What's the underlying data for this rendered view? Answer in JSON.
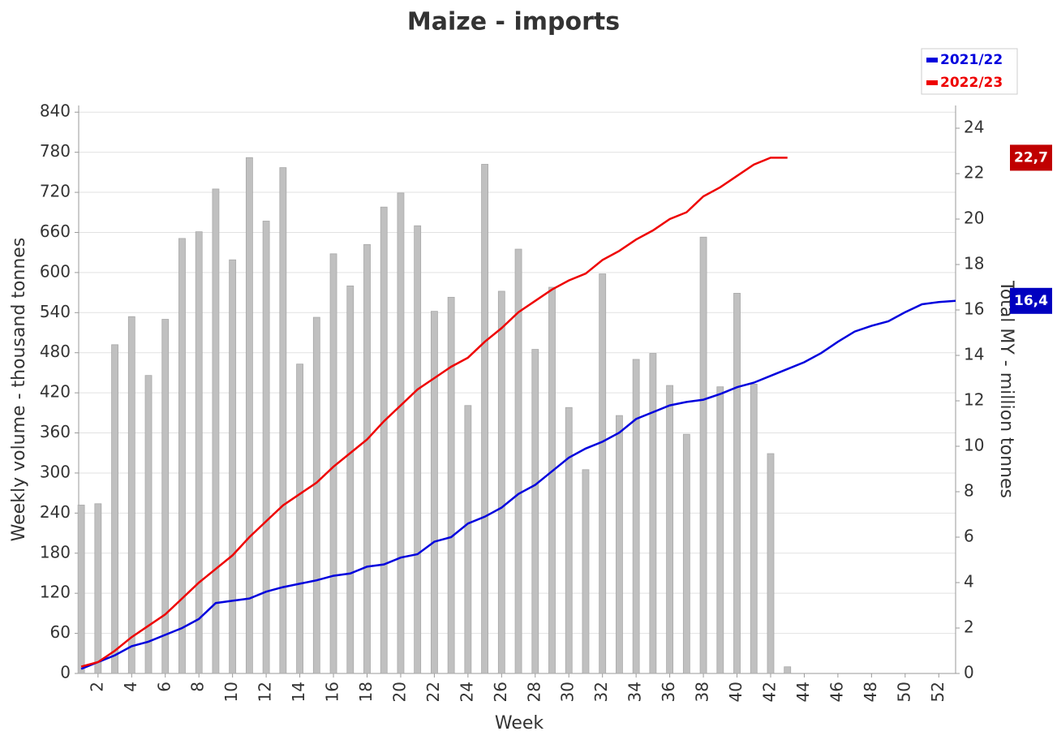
{
  "chart_data": {
    "type": "bar_line",
    "title": "Maize - imports",
    "xlabel": "Week",
    "ylabel": "Weekly volume - thousand tonnes",
    "y2label": "Total MY - million tonnes",
    "xlim": [
      0.85,
      53
    ],
    "xticks": [
      2,
      4,
      6,
      8,
      10,
      12,
      14,
      16,
      18,
      20,
      22,
      24,
      26,
      28,
      30,
      32,
      34,
      36,
      38,
      40,
      42,
      44,
      46,
      48,
      50,
      52
    ],
    "ylim": [
      0,
      850
    ],
    "yticks": [
      0,
      60,
      120,
      180,
      240,
      300,
      360,
      420,
      480,
      540,
      600,
      660,
      720,
      780,
      840
    ],
    "y2lim": [
      0,
      25
    ],
    "y2ticks": [
      0,
      2,
      4,
      6,
      8,
      10,
      12,
      14,
      16,
      18,
      20,
      22,
      24
    ],
    "grid": true,
    "legend": "top-right",
    "bars": {
      "color": "#c0c0c0",
      "x": [
        1,
        2,
        3,
        4,
        5,
        6,
        7,
        8,
        9,
        10,
        11,
        12,
        13,
        14,
        15,
        16,
        17,
        18,
        19,
        20,
        21,
        22,
        23,
        24,
        25,
        26,
        27,
        28,
        29,
        30,
        31,
        32,
        33,
        34,
        35,
        36,
        37,
        38,
        39,
        40,
        41,
        42,
        43,
        44,
        45,
        46,
        47,
        48,
        49,
        50,
        51,
        52
      ],
      "values": [
        252,
        254,
        492,
        534,
        446,
        530,
        651,
        661,
        725,
        619,
        772,
        677,
        757,
        463,
        533,
        628,
        580,
        642,
        698,
        719,
        670,
        542,
        563,
        401,
        762,
        572,
        635,
        485,
        578,
        398,
        305,
        598,
        386,
        470,
        479,
        431,
        358,
        653,
        429,
        569,
        433,
        329,
        10,
        0,
        0,
        0,
        0,
        0,
        0,
        0,
        0,
        0
      ]
    },
    "series": [
      {
        "name": "2021/22",
        "color": "#0000dd",
        "axis": "y2",
        "end_label": "16,4",
        "x": [
          1,
          2,
          3,
          4,
          5,
          6,
          7,
          8,
          9,
          10,
          11,
          12,
          13,
          14,
          15,
          16,
          17,
          18,
          19,
          20,
          21,
          22,
          23,
          24,
          25,
          26,
          27,
          28,
          29,
          30,
          31,
          32,
          33,
          34,
          35,
          36,
          37,
          38,
          39,
          40,
          41,
          42,
          43,
          44,
          45,
          46,
          47,
          48,
          49,
          50,
          51,
          52,
          53
        ],
        "values": [
          0.2,
          0.5,
          0.8,
          1.2,
          1.4,
          1.7,
          2.0,
          2.4,
          3.1,
          3.2,
          3.3,
          3.6,
          3.8,
          3.95,
          4.1,
          4.3,
          4.4,
          4.7,
          4.8,
          5.1,
          5.25,
          5.8,
          6.0,
          6.6,
          6.9,
          7.3,
          7.9,
          8.3,
          8.9,
          9.5,
          9.9,
          10.2,
          10.6,
          11.2,
          11.5,
          11.8,
          11.95,
          12.05,
          12.3,
          12.6,
          12.8,
          13.1,
          13.4,
          13.7,
          14.1,
          14.6,
          15.05,
          15.3,
          15.5,
          15.9,
          16.25,
          16.35,
          16.4
        ]
      },
      {
        "name": "2022/23",
        "color": "#ee0000",
        "axis": "y2",
        "end_label": "22,7",
        "x": [
          1,
          2,
          3,
          4,
          5,
          6,
          7,
          8,
          9,
          10,
          11,
          12,
          13,
          14,
          15,
          16,
          17,
          18,
          19,
          20,
          21,
          22,
          23,
          24,
          25,
          26,
          27,
          28,
          29,
          30,
          31,
          32,
          33,
          34,
          35,
          36,
          37,
          38,
          39,
          40,
          41,
          42,
          43
        ],
        "values": [
          0.3,
          0.5,
          1.0,
          1.6,
          2.1,
          2.6,
          3.3,
          4.0,
          4.6,
          5.2,
          6.0,
          6.7,
          7.4,
          7.9,
          8.4,
          9.1,
          9.7,
          10.3,
          11.1,
          11.8,
          12.5,
          13.0,
          13.5,
          13.9,
          14.6,
          15.2,
          15.9,
          16.4,
          16.9,
          17.3,
          17.6,
          18.2,
          18.6,
          19.1,
          19.5,
          20.0,
          20.3,
          21.0,
          21.4,
          21.9,
          22.4,
          22.7,
          22.7
        ]
      }
    ]
  }
}
